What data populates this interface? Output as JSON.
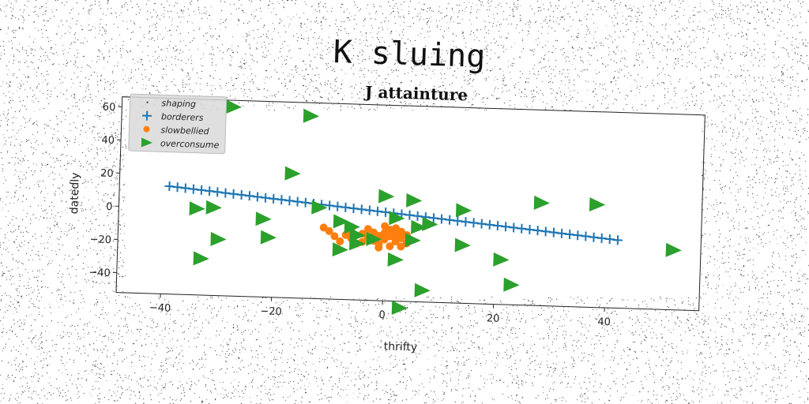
{
  "page": {
    "heading": "K sluing"
  },
  "chart_data": {
    "type": "scatter",
    "title": "J attainture",
    "xlabel": "thrifty",
    "ylabel": "datedly",
    "xlim": [
      -48,
      57
    ],
    "ylim": [
      -52,
      66
    ],
    "xticks": [
      -40,
      -20,
      0,
      20,
      40
    ],
    "yticks": [
      -40,
      -20,
      0,
      20,
      40,
      60
    ],
    "grid": false,
    "legend_position": "top-left",
    "legend": [
      "shaping",
      "borderers",
      "slowbellied",
      "overconsume"
    ],
    "colors": {
      "shaping": "#444444",
      "borderers": "#1f77b4",
      "slowbellied": "#ff7f0e",
      "overconsume": "#2ca02c"
    },
    "series": [
      {
        "name": "shaping",
        "marker": "pixel",
        "points": []
      },
      {
        "name": "borderers",
        "marker": "plus",
        "line": {
          "x_start": -39,
          "x_end": 42,
          "y_start": 13,
          "y_end": -11,
          "count": 57
        }
      },
      {
        "name": "slowbellied",
        "marker": "circle",
        "points": [
          [
            -11,
            -9
          ],
          [
            -10,
            -11
          ],
          [
            -9,
            -14
          ],
          [
            -8,
            -17
          ],
          [
            -7,
            -13
          ],
          [
            -6,
            -10
          ],
          [
            -6,
            -15
          ],
          [
            -5,
            -18
          ],
          [
            -4,
            -12
          ],
          [
            -4,
            -17
          ],
          [
            -3,
            -9
          ],
          [
            -3,
            -14
          ],
          [
            -2,
            -11
          ],
          [
            -2,
            -16
          ],
          [
            -1,
            -13
          ],
          [
            -1,
            -18
          ],
          [
            0,
            -7
          ],
          [
            0,
            -11
          ],
          [
            0,
            -15
          ],
          [
            1,
            -9
          ],
          [
            1,
            -13
          ],
          [
            1,
            -19
          ],
          [
            2,
            -12
          ],
          [
            2,
            -16
          ],
          [
            3,
            -10
          ],
          [
            3,
            -14
          ],
          [
            3,
            -19
          ],
          [
            4,
            -12
          ],
          [
            -6,
            -13
          ],
          [
            2,
            -8
          ],
          [
            -1,
            -20
          ],
          [
            4,
            -17
          ]
        ]
      },
      {
        "name": "overconsume",
        "marker": "triangle-right",
        "points": [
          [
            -28,
            62
          ],
          [
            -14,
            58
          ],
          [
            -17,
            23
          ],
          [
            -12,
            3
          ],
          [
            -34,
            0
          ],
          [
            -31,
            1
          ],
          [
            -22,
            -5
          ],
          [
            -21,
            -16
          ],
          [
            -30,
            -18
          ],
          [
            -33,
            -30
          ],
          [
            -8,
            -5
          ],
          [
            -6,
            -8
          ],
          [
            -5,
            -13
          ],
          [
            -8,
            -22
          ],
          [
            -5,
            -18
          ],
          [
            -2,
            -15
          ],
          [
            0,
            11
          ],
          [
            2,
            -2
          ],
          [
            5,
            9
          ],
          [
            6,
            -7
          ],
          [
            5,
            -15
          ],
          [
            8,
            -5
          ],
          [
            2,
            -27
          ],
          [
            7,
            -45
          ],
          [
            3,
            -56
          ],
          [
            14,
            4
          ],
          [
            14,
            -17
          ],
          [
            21,
            -25
          ],
          [
            23,
            -40
          ],
          [
            28,
            10
          ],
          [
            38,
            10
          ],
          [
            52,
            -16
          ]
        ]
      }
    ]
  }
}
